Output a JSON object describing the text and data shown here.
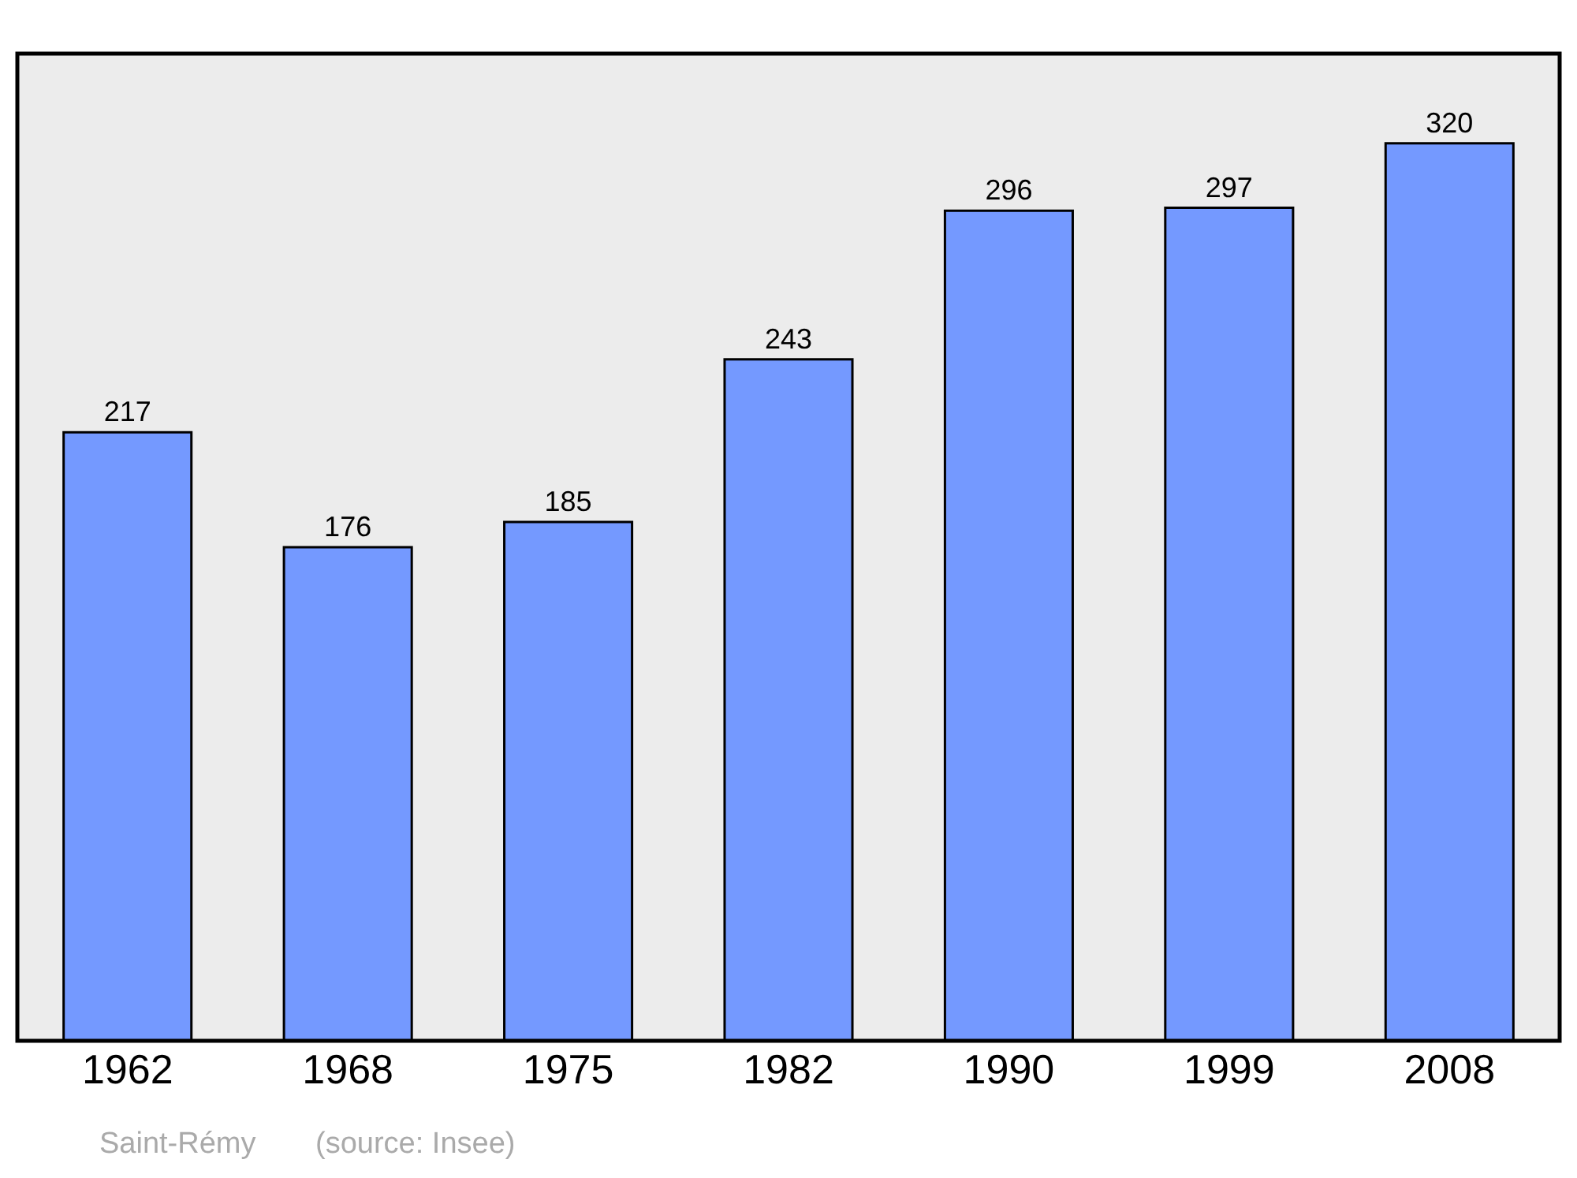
{
  "chart_data": {
    "type": "bar",
    "categories": [
      "1962",
      "1968",
      "1975",
      "1982",
      "1990",
      "1999",
      "2008"
    ],
    "values": [
      217,
      176,
      185,
      243,
      296,
      297,
      320
    ],
    "color": "#7499ff",
    "data_labels": true,
    "annotations": [
      "Saint-Rémy",
      "(source: Insee)"
    ]
  }
}
